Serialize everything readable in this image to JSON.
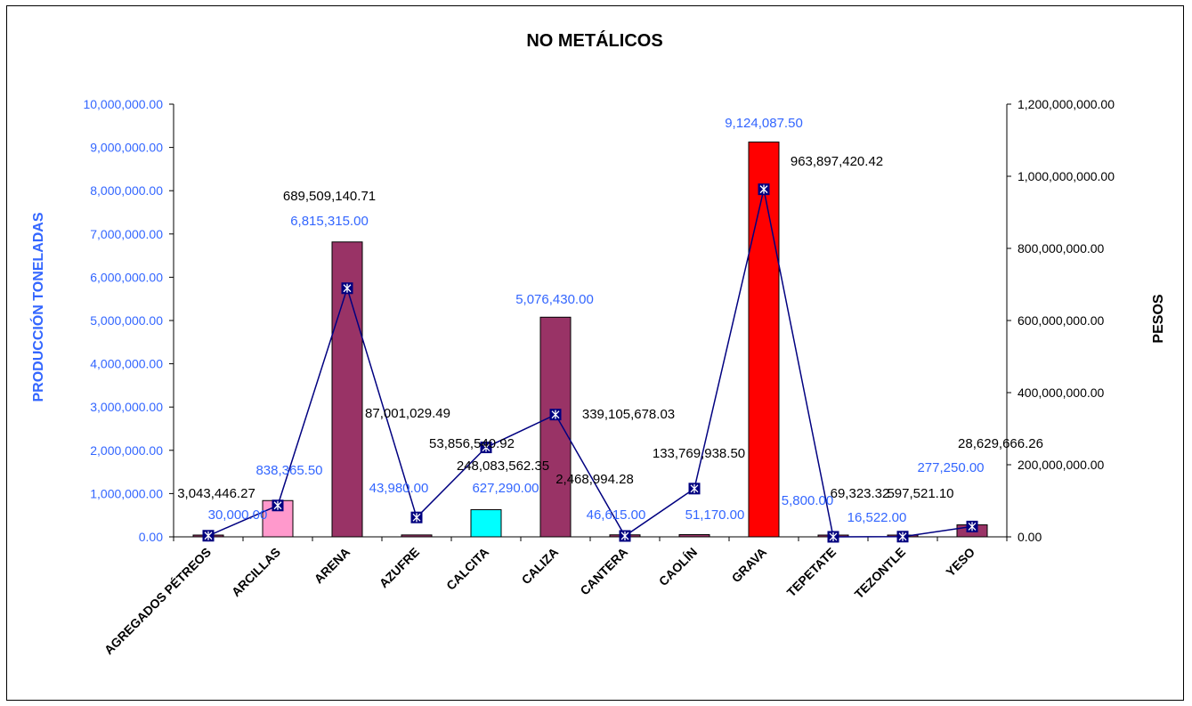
{
  "chart_data": {
    "type": "bar",
    "title": "NO METÁLICOS",
    "ylabel": "PRODUCCIÓN TONELADAS",
    "y2label": "PESOS",
    "ylim": [
      0,
      10000000
    ],
    "y2lim": [
      0,
      1200000000
    ],
    "y_ticks": [
      "0.00",
      "1,000,000.00",
      "2,000,000.00",
      "3,000,000.00",
      "4,000,000.00",
      "5,000,000.00",
      "6,000,000.00",
      "7,000,000.00",
      "8,000,000.00",
      "9,000,000.00",
      "10,000,000.00"
    ],
    "y2_ticks": [
      "0.00",
      "200,000,000.00",
      "400,000,000.00",
      "600,000,000.00",
      "800,000,000.00",
      "1,000,000,000.00",
      "1,200,000,000.00"
    ],
    "categories": [
      "AGREGADOS PÉTREOS",
      "ARCILLAS",
      "ARENA",
      "AZUFRE",
      "CALCITA",
      "CALIZA",
      "CANTERA",
      "CAOLÍN",
      "GRAVA",
      "TEPETATE",
      "TEZONTLE",
      "YESO"
    ],
    "series": [
      {
        "axis": "left",
        "kind": "bar",
        "values": [
          30000,
          838365.5,
          6815315,
          43980,
          627290,
          5076430,
          46615,
          51170,
          9124087.5,
          5800,
          16522,
          277250
        ],
        "labels": [
          "30,000.00",
          "838,365.50",
          "6,815,315.00",
          "43,980.00",
          "627,290.00",
          "5,076,430.00",
          "46,615.00",
          "51,170.00",
          "9,124,087.50",
          "5,800.00",
          "16,522.00",
          "277,250.00"
        ],
        "colors": [
          "#993366",
          "#ff99cc",
          "#993366",
          "#993366",
          "#00ffff",
          "#993366",
          "#993366",
          "#993366",
          "#ff0000",
          "#993366",
          "#993366",
          "#993366"
        ]
      },
      {
        "axis": "right",
        "kind": "line",
        "values": [
          3043446.27,
          87001029.49,
          689509140.71,
          53856540.92,
          248083562.35,
          339105678.03,
          2468994.28,
          133769938.5,
          963897420.42,
          69323.32,
          597521.1,
          28629666.26
        ],
        "labels": [
          "3,043,446.27",
          "87,001,029.49",
          "689,509,140.71",
          "53,856,540.92",
          "248,083,562.35",
          "339,105,678.03",
          "2,468,994.28",
          "133,769,938.50",
          "963,897,420.42",
          "69,323.32",
          "597,521.10",
          "28,629,666.26"
        ]
      }
    ],
    "colors": {
      "axis_left": "#3366ff",
      "line": "#000080",
      "text": "#000000"
    }
  }
}
